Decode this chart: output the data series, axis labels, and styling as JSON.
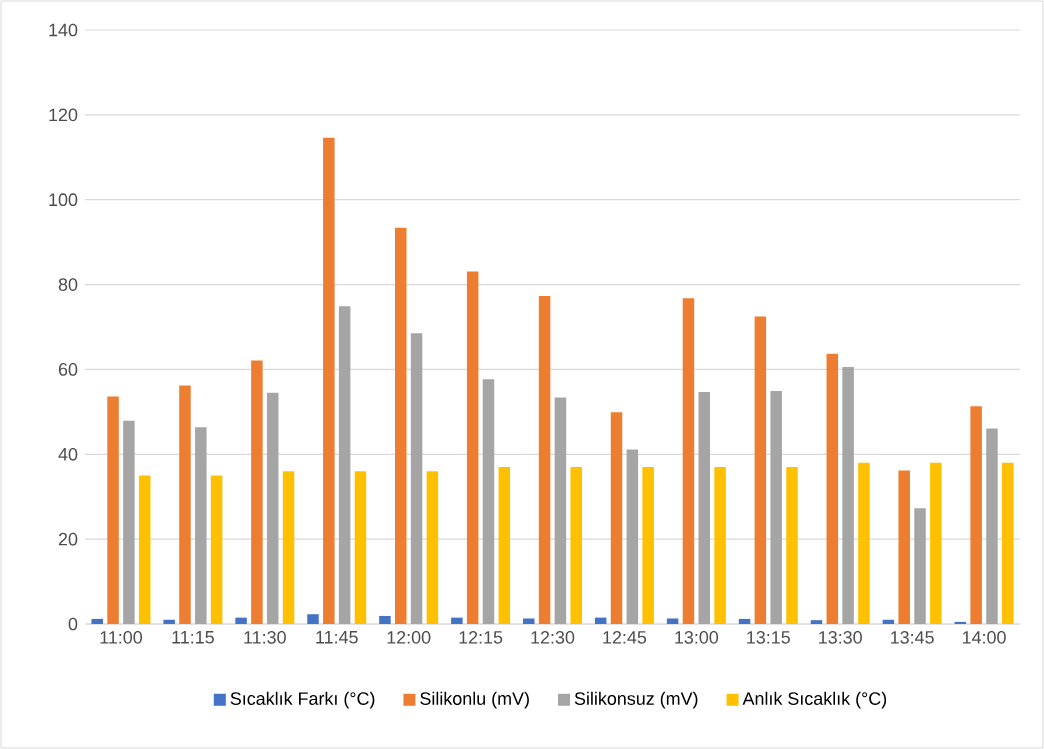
{
  "chart_data": {
    "type": "bar",
    "categories": [
      "11:00",
      "11:15",
      "11:30",
      "11:45",
      "12:00",
      "12:15",
      "12:30",
      "12:45",
      "13:00",
      "13:15",
      "13:30",
      "13:45",
      "14:00"
    ],
    "series": [
      {
        "name": "Sıcaklık Farkı (°C)",
        "color": "#4472c4",
        "values": [
          1.2,
          1.0,
          1.5,
          2.3,
          1.9,
          1.5,
          1.3,
          1.5,
          1.3,
          1.2,
          0.9,
          1.0,
          0.5
        ]
      },
      {
        "name": "Silikonlu (mV)",
        "color": "#ed7d31",
        "values": [
          53.6,
          56.2,
          62.1,
          114.6,
          93.4,
          83.1,
          77.3,
          49.9,
          76.8,
          72.5,
          63.7,
          36.2,
          51.3
        ]
      },
      {
        "name": "Silikonsuz (mV)",
        "color": "#a5a5a5",
        "values": [
          47.9,
          46.4,
          54.5,
          74.9,
          68.5,
          57.7,
          53.4,
          41.1,
          54.7,
          54.9,
          60.6,
          27.3,
          46.1
        ]
      },
      {
        "name": "Anlık Sıcaklık (°C)",
        "color": "#ffc000",
        "values": [
          35,
          35,
          36,
          36,
          36,
          37,
          37,
          37,
          37,
          37,
          38,
          38,
          38
        ]
      }
    ],
    "ylim": [
      0,
      140
    ],
    "yticks": [
      0,
      20,
      40,
      60,
      80,
      100,
      120,
      140
    ],
    "grid": "y",
    "legend": "bottom"
  }
}
